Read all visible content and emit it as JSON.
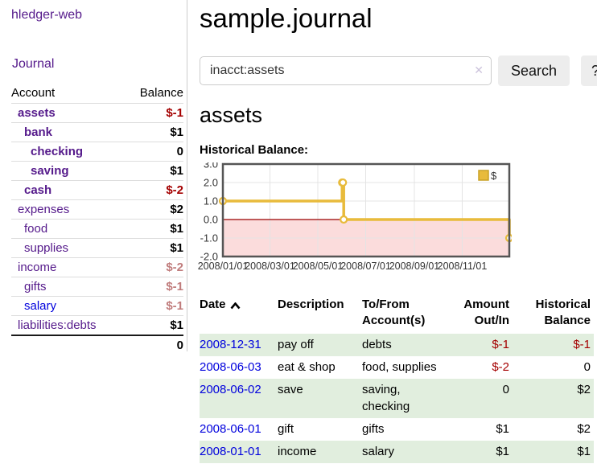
{
  "sidebar": {
    "brand": "hledger-web",
    "journal_link": "Journal",
    "headers": {
      "account": "Account",
      "balance": "Balance"
    },
    "accounts": [
      {
        "name": "assets",
        "balance": "$-1",
        "level": 1,
        "bold": true,
        "neg": true
      },
      {
        "name": "bank",
        "balance": "$1",
        "level": 2,
        "bold": true,
        "neg": false
      },
      {
        "name": "checking",
        "balance": "0",
        "level": 3,
        "bold": true,
        "neg": false
      },
      {
        "name": "saving",
        "balance": "$1",
        "level": 3,
        "bold": true,
        "neg": false
      },
      {
        "name": "cash",
        "balance": "$-2",
        "level": 2,
        "bold": true,
        "neg": true
      },
      {
        "name": "expenses",
        "balance": "$2",
        "level": 1,
        "bold": false,
        "neg": false
      },
      {
        "name": "food",
        "balance": "$1",
        "level": 2,
        "bold": false,
        "neg": false
      },
      {
        "name": "supplies",
        "balance": "$1",
        "level": 2,
        "bold": false,
        "neg": false
      },
      {
        "name": "income",
        "balance": "$-2",
        "level": 1,
        "bold": false,
        "neg": true
      },
      {
        "name": "gifts",
        "balance": "$-1",
        "level": 2,
        "bold": false,
        "neg": true
      },
      {
        "name": "salary",
        "balance": "$-1",
        "level": 2,
        "bold": false,
        "neg": true,
        "blue": true
      },
      {
        "name": "liabilities:debts",
        "balance": "$1",
        "level": 1,
        "bold": false,
        "neg": false
      }
    ],
    "total": "0"
  },
  "main": {
    "title": "sample.journal",
    "account_heading": "assets",
    "chart_label": "Historical Balance:"
  },
  "search": {
    "value": "inacct:assets",
    "clear_icon": "✕",
    "button_label": "Search",
    "help_label": "?"
  },
  "chart_data": {
    "type": "line",
    "step": true,
    "series": [
      {
        "name": "$",
        "points": [
          {
            "date": "2008-01-01",
            "value": 1
          },
          {
            "date": "2008-06-01",
            "value": 2
          },
          {
            "date": "2008-06-02",
            "value": 2
          },
          {
            "date": "2008-06-03",
            "value": 0
          },
          {
            "date": "2008-12-31",
            "value": -1
          }
        ]
      }
    ],
    "ylim": [
      -2,
      3
    ],
    "yticks": [
      3.0,
      2.0,
      1.0,
      0.0,
      -1.0,
      -2.0
    ],
    "xticks": [
      "2008/01/01",
      "2008/03/01",
      "2008/05/01",
      "2008/07/01",
      "2008/09/01",
      "2008/11/01"
    ],
    "legend": "$",
    "legend_position": "top-right",
    "grid": true,
    "colors": {
      "line": "#E8BB3C",
      "line_border": "#C9A227",
      "marker_fill": "#FFFFFF",
      "negative_region": "#FBDCDC",
      "zero_line": "#990000",
      "plot_border": "#555555",
      "gridline": "#E4E4E4",
      "tick_text": "#333333"
    }
  },
  "register": {
    "headers": [
      "Date",
      "Description",
      "To/From Account(s)",
      "Amount Out/In",
      "Historical Balance"
    ],
    "sort_icon": "chevron-up",
    "rows": [
      {
        "date": "2008-12-31",
        "description": "pay off",
        "accounts": "debts",
        "amount": "$-1",
        "balance": "$-1"
      },
      {
        "date": "2008-06-03",
        "description": "eat & shop",
        "accounts": "food, supplies",
        "amount": "$-2",
        "balance": "0"
      },
      {
        "date": "2008-06-02",
        "description": "save",
        "accounts": "saving, checking",
        "amount": "0",
        "balance": "$2"
      },
      {
        "date": "2008-06-01",
        "description": "gift",
        "accounts": "gifts",
        "amount": "$1",
        "balance": "$2"
      },
      {
        "date": "2008-01-01",
        "description": "income",
        "accounts": "salary",
        "amount": "$1",
        "balance": "$1"
      }
    ]
  },
  "colors": {
    "link_purple": "#551A8B",
    "link_blue": "#0000DD",
    "negative_dark": "#A40000",
    "negative_light": "#C07C7C",
    "stripe_green": "#E1EEDE"
  }
}
